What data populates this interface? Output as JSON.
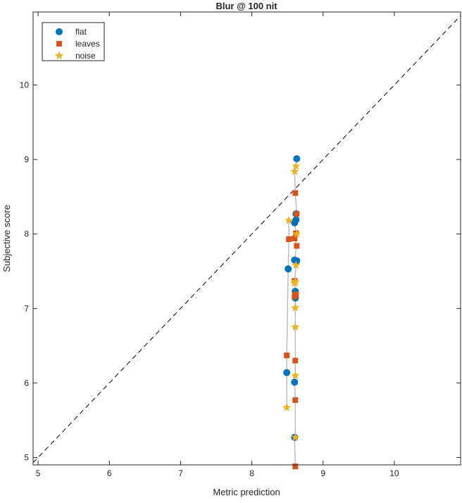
{
  "chart_data": {
    "type": "scatter",
    "title": "Blur @ 100 nit",
    "xlabel": "Metric prediction",
    "ylabel": "Subjective score",
    "xlim": [
      4.93,
      10.93
    ],
    "ylim": [
      4.9,
      10.98
    ],
    "xticks": [
      5,
      6,
      7,
      8,
      9,
      10
    ],
    "yticks": [
      5,
      6,
      7,
      8,
      9,
      10
    ],
    "grid": false,
    "legend_position": "top-left",
    "identity_line": true,
    "series": [
      {
        "name": "flat",
        "marker": "circle",
        "color": "#0072BD",
        "points": [
          [
            8.63,
            9.01
          ],
          [
            8.62,
            8.27
          ],
          [
            8.62,
            8.19
          ],
          [
            8.6,
            8.15
          ],
          [
            8.6,
            7.65
          ],
          [
            8.63,
            7.64
          ],
          [
            8.51,
            7.53
          ],
          [
            8.61,
            7.23
          ],
          [
            8.61,
            7.14
          ],
          [
            8.49,
            6.14
          ],
          [
            8.6,
            6.01
          ],
          [
            8.6,
            5.27
          ]
        ]
      },
      {
        "name": "leaves",
        "marker": "square",
        "color": "#D95319",
        "points": [
          [
            8.61,
            8.55
          ],
          [
            8.63,
            8.27
          ],
          [
            8.62,
            8.01
          ],
          [
            8.6,
            7.94
          ],
          [
            8.52,
            7.93
          ],
          [
            8.63,
            7.84
          ],
          [
            8.6,
            7.37
          ],
          [
            8.62,
            7.19
          ],
          [
            8.6,
            7.16
          ],
          [
            8.49,
            6.37
          ],
          [
            8.61,
            6.3
          ],
          [
            8.61,
            5.77
          ],
          [
            8.61,
            4.88
          ]
        ]
      },
      {
        "name": "noise",
        "marker": "star",
        "color": "#EDB120",
        "points": [
          [
            8.62,
            8.91
          ],
          [
            8.6,
            8.84
          ],
          [
            8.52,
            8.18
          ],
          [
            8.63,
            8.0
          ],
          [
            8.62,
            7.58
          ],
          [
            8.61,
            7.36
          ],
          [
            8.6,
            7.34
          ],
          [
            8.61,
            7.01
          ],
          [
            8.61,
            6.75
          ],
          [
            8.61,
            6.1
          ],
          [
            8.49,
            5.67
          ],
          [
            8.61,
            5.27
          ]
        ]
      }
    ]
  }
}
